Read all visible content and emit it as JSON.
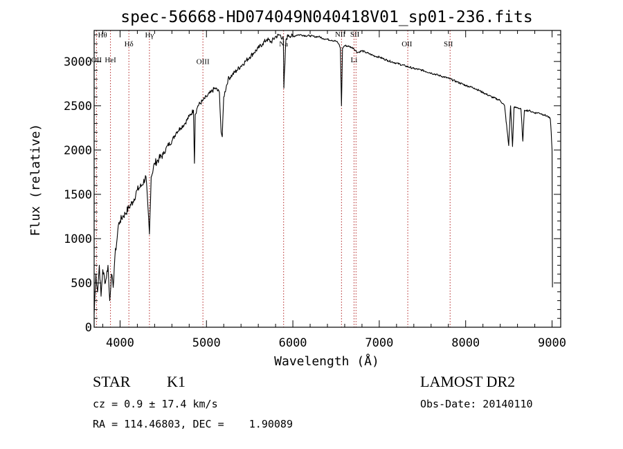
{
  "chart_data": {
    "type": "line",
    "title": "spec-56668-HD074049N040418V01_sp01-236.fits",
    "xlabel": "Wavelength (Å)",
    "ylabel": "Flux (relative)",
    "xlim": [
      3700,
      9100
    ],
    "ylim": [
      0,
      3350
    ],
    "xticks": [
      4000,
      5000,
      6000,
      7000,
      8000,
      9000
    ],
    "yticks": [
      0,
      500,
      1000,
      1500,
      2000,
      2500,
      3000
    ],
    "grid": false,
    "series": [
      {
        "x": [
          3700,
          3720,
          3740,
          3760,
          3780,
          3800,
          3830,
          3860,
          3880,
          3900,
          3920,
          3940,
          3960,
          3980,
          4000,
          4030,
          4060,
          4100,
          4150,
          4200,
          4250,
          4300,
          4340,
          4360,
          4400,
          4450,
          4500,
          4550,
          4600,
          4650,
          4700,
          4750,
          4800,
          4850,
          4861,
          4870,
          4900,
          4950,
          5000,
          5050,
          5100,
          5150,
          5170,
          5183,
          5200,
          5250,
          5300,
          5350,
          5400,
          5450,
          5500,
          5550,
          5600,
          5650,
          5700,
          5750,
          5800,
          5850,
          5890,
          5896,
          5920,
          5950,
          6000,
          6050,
          6100,
          6150,
          6200,
          6250,
          6300,
          6350,
          6400,
          6450,
          6500,
          6530,
          6550,
          6563,
          6575,
          6600,
          6650,
          6700,
          6750,
          6800,
          6850,
          6900,
          6950,
          7000,
          7100,
          7200,
          7300,
          7400,
          7500,
          7600,
          7700,
          7800,
          7900,
          8000,
          8100,
          8200,
          8300,
          8400,
          8450,
          8498,
          8520,
          8542,
          8560,
          8600,
          8640,
          8662,
          8680,
          8700,
          8750,
          8800,
          8850,
          8900,
          8950,
          8980,
          8990,
          9000,
          9005
        ],
        "y": [
          150,
          600,
          400,
          700,
          350,
          650,
          500,
          700,
          300,
          600,
          450,
          800,
          950,
          1150,
          1200,
          1250,
          1280,
          1350,
          1420,
          1550,
          1600,
          1700,
          1050,
          1700,
          1850,
          1900,
          1950,
          2050,
          2100,
          2200,
          2250,
          2300,
          2380,
          2450,
          1850,
          2400,
          2500,
          2550,
          2600,
          2650,
          2700,
          2650,
          2200,
          2150,
          2600,
          2800,
          2850,
          2900,
          2950,
          3000,
          3050,
          3100,
          3150,
          3200,
          3250,
          3220,
          3280,
          3300,
          3250,
          2700,
          3250,
          3300,
          3280,
          3300,
          3300,
          3290,
          3290,
          3280,
          3280,
          3260,
          3250,
          3240,
          3230,
          3200,
          3150,
          2500,
          3150,
          3180,
          3170,
          3150,
          3100,
          3120,
          3100,
          3080,
          3060,
          3050,
          3010,
          2980,
          2950,
          2920,
          2900,
          2870,
          2840,
          2810,
          2770,
          2730,
          2700,
          2650,
          2600,
          2560,
          2500,
          2050,
          2500,
          2040,
          2480,
          2480,
          2460,
          2100,
          2450,
          2450,
          2440,
          2420,
          2420,
          2400,
          2380,
          2350,
          2200,
          2000,
          450
        ]
      }
    ],
    "annotations": [
      {
        "label": "Hθ",
        "x": 3797,
        "y": 3270
      },
      {
        "label": "OII",
        "x": 3727,
        "y": 2990
      },
      {
        "label": "HeI",
        "x": 3889,
        "y": 2990
      },
      {
        "label": "Hδ",
        "x": 4102,
        "y": 3170
      },
      {
        "label": "Hγ",
        "x": 4340,
        "y": 3270
      },
      {
        "label": "OIII",
        "x": 4959,
        "y": 2970
      },
      {
        "label": "Na",
        "x": 5893,
        "y": 3170
      },
      {
        "label": "NII",
        "x": 6548,
        "y": 3280
      },
      {
        "label": "SII",
        "x": 6717,
        "y": 3280
      },
      {
        "label": "Li",
        "x": 6708,
        "y": 2990
      },
      {
        "label": "OII",
        "x": 7320,
        "y": 3170
      },
      {
        "label": "SII",
        "x": 7800,
        "y": 3170
      }
    ],
    "reference_lines_x": [
      3727,
      3889,
      4102,
      4340,
      4959,
      5893,
      6563,
      6708,
      6731,
      7330,
      7820
    ]
  },
  "info": {
    "object_class": "STAR",
    "subclass": "K1",
    "survey": "LAMOST DR2",
    "velocity": "cz = 0.9 ± 17.4 km/s",
    "obs_date": "Obs-Date: 20140110",
    "coordinates": "RA = 114.46803, DEC =    1.90089"
  },
  "colors": {
    "spectrum": "#000000",
    "reference_line": "#b22222",
    "background": "#ffffff"
  }
}
